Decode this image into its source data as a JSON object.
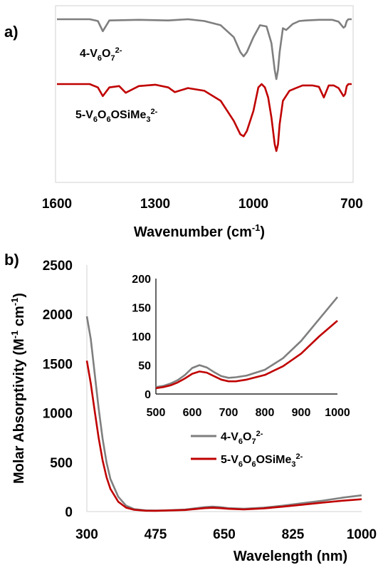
{
  "colors": {
    "gray": "#7f7f7f",
    "red": "#c00000",
    "axis": "#d9d9d9"
  },
  "chart_data": [
    {
      "panel_label": "a)",
      "type": "line",
      "xlabel_main": "Wavenumber (cm",
      "xlabel_sup": "-1",
      "xlabel_close": ")",
      "xlim": [
        1600,
        700
      ],
      "x_ticks": [
        "1600",
        "1300",
        "1000",
        "700"
      ],
      "grid": false,
      "series": [
        {
          "name_parts": [
            "4-V",
            "6",
            "O",
            "7",
            "2-"
          ],
          "color": "#7f7f7f",
          "x": [
            1600,
            1500,
            1475,
            1460,
            1440,
            1350,
            1260,
            1200,
            1150,
            1100,
            1060,
            1040,
            1030,
            1020,
            1000,
            980,
            960,
            945,
            935,
            930,
            925,
            920,
            910,
            900,
            880,
            860,
            840,
            800,
            760,
            740,
            725,
            720,
            715,
            710,
            700
          ],
          "y": [
            0,
            0,
            -0.03,
            -0.2,
            -0.02,
            -0.01,
            -0.02,
            0,
            -0.03,
            -0.1,
            -0.3,
            -0.55,
            -0.62,
            -0.55,
            -0.3,
            -0.1,
            -0.12,
            -0.4,
            -0.85,
            -1.0,
            -0.85,
            -0.55,
            -0.15,
            -0.18,
            -0.08,
            -0.03,
            -0.02,
            -0.01,
            -0.01,
            -0.04,
            -0.14,
            -0.12,
            -0.03,
            0,
            0
          ]
        },
        {
          "name_parts": [
            "5-V",
            "6",
            "O",
            "6",
            "OSiMe",
            "3",
            "2-"
          ],
          "color": "#c00000",
          "x": [
            1600,
            1500,
            1475,
            1460,
            1440,
            1410,
            1390,
            1350,
            1300,
            1260,
            1240,
            1200,
            1150,
            1100,
            1060,
            1040,
            1030,
            1020,
            1000,
            985,
            975,
            965,
            955,
            945,
            935,
            930,
            925,
            920,
            910,
            890,
            870,
            850,
            820,
            800,
            785,
            770,
            755,
            740,
            725,
            720,
            715,
            710,
            700
          ],
          "y": [
            0,
            0,
            -0.05,
            -0.18,
            -0.05,
            -0.03,
            -0.13,
            -0.03,
            -0.01,
            -0.05,
            -0.12,
            -0.06,
            -0.1,
            -0.25,
            -0.55,
            -0.75,
            -0.78,
            -0.7,
            -0.4,
            -0.05,
            0,
            -0.05,
            -0.2,
            -0.5,
            -0.9,
            -1.0,
            -0.9,
            -0.6,
            -0.25,
            -0.1,
            -0.06,
            -0.02,
            -0.02,
            -0.04,
            -0.2,
            -0.02,
            -0.02,
            -0.06,
            -0.18,
            -0.15,
            -0.03,
            0,
            0
          ]
        }
      ]
    },
    {
      "panel_label": "b)",
      "type": "line",
      "xlabel": "Wavelength (nm)",
      "ylabel_main": "Molar Absorptivity (M",
      "ylabel_sup1": "-1",
      "ylabel_mid": " cm",
      "ylabel_sup2": "-1",
      "ylabel_close": ")",
      "xlim": [
        300,
        1000
      ],
      "ylim": [
        0,
        2500
      ],
      "x_ticks": [
        "300",
        "475",
        "650",
        "825",
        "1000"
      ],
      "y_ticks": [
        "0",
        "500",
        "1000",
        "1500",
        "2000",
        "2500"
      ],
      "grid": false,
      "legend_position": "lower-right",
      "series": [
        {
          "name_parts": [
            "4-V",
            "6",
            "O",
            "7",
            "2-"
          ],
          "color": "#7f7f7f",
          "x": [
            300,
            310,
            320,
            330,
            340,
            350,
            360,
            380,
            400,
            420,
            450,
            475,
            500,
            550,
            600,
            620,
            640,
            660,
            700,
            750,
            800,
            850,
            900,
            950,
            1000
          ],
          "y": [
            1980,
            1750,
            1400,
            1050,
            740,
            500,
            330,
            150,
            60,
            25,
            12,
            10,
            12,
            20,
            45,
            50,
            45,
            35,
            28,
            40,
            60,
            85,
            110,
            140,
            165
          ]
        },
        {
          "name_parts": [
            "5-V",
            "6",
            "O",
            "6",
            "OSiMe",
            "3",
            "2-"
          ],
          "color": "#c00000",
          "x": [
            300,
            310,
            320,
            330,
            340,
            350,
            360,
            380,
            400,
            420,
            450,
            475,
            500,
            550,
            600,
            620,
            640,
            660,
            700,
            750,
            800,
            850,
            900,
            950,
            1000
          ],
          "y": [
            1530,
            1300,
            1020,
            750,
            520,
            350,
            230,
            100,
            40,
            18,
            9,
            8,
            10,
            16,
            35,
            38,
            35,
            28,
            22,
            32,
            50,
            70,
            90,
            110,
            125
          ]
        }
      ],
      "inset": {
        "xlim": [
          500,
          1000
        ],
        "ylim": [
          0,
          200
        ],
        "x_ticks": [
          "500",
          "600",
          "700",
          "800",
          "900",
          "1000"
        ],
        "y_ticks": [
          "0",
          "50",
          "100",
          "150",
          "200"
        ],
        "series": [
          {
            "color": "#7f7f7f",
            "x": [
              500,
              520,
              540,
              560,
              580,
              600,
              620,
              640,
              660,
              680,
              700,
              720,
              750,
              800,
              850,
              900,
              950,
              1000
            ],
            "y": [
              12,
              14,
              18,
              24,
              33,
              45,
              50,
              46,
              38,
              31,
              28,
              29,
              32,
              42,
              62,
              92,
              130,
              168
            ]
          },
          {
            "color": "#c00000",
            "x": [
              500,
              520,
              540,
              560,
              580,
              600,
              620,
              640,
              660,
              680,
              700,
              720,
              750,
              800,
              850,
              900,
              950,
              1000
            ],
            "y": [
              10,
              12,
              15,
              20,
              27,
              35,
              39,
              37,
              31,
              25,
              22,
              22,
              25,
              33,
              48,
              70,
              100,
              127
            ]
          }
        ]
      }
    }
  ]
}
